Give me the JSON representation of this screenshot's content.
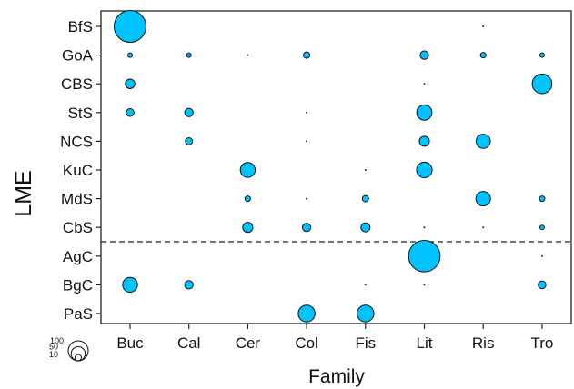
{
  "chart_data": {
    "type": "bubble",
    "xlabel": "Family",
    "ylabel": "LME",
    "categories_x": [
      "Buc",
      "Cal",
      "Cer",
      "Col",
      "Fis",
      "Lit",
      "Ris",
      "Tro"
    ],
    "categories_y": [
      "BfS",
      "GoA",
      "CBS",
      "StS",
      "NCS",
      "KuC",
      "MdS",
      "CbS",
      "AgC",
      "BgC",
      "PaS"
    ],
    "divider_between": [
      "CbS",
      "AgC"
    ],
    "bubble_color": "#00c2ff",
    "size_legend": {
      "values": [
        100,
        50,
        10
      ],
      "labels": [
        "100",
        "50",
        "10"
      ]
    },
    "points": [
      {
        "x": "Buc",
        "y": "BfS",
        "value": 100
      },
      {
        "x": "Ris",
        "y": "BfS",
        "value": 0.5
      },
      {
        "x": "Buc",
        "y": "GoA",
        "value": 2
      },
      {
        "x": "Cal",
        "y": "GoA",
        "value": 2
      },
      {
        "x": "Cer",
        "y": "GoA",
        "value": 0.5
      },
      {
        "x": "Col",
        "y": "GoA",
        "value": 4
      },
      {
        "x": "Lit",
        "y": "GoA",
        "value": 7
      },
      {
        "x": "Ris",
        "y": "GoA",
        "value": 3
      },
      {
        "x": "Tro",
        "y": "GoA",
        "value": 2
      },
      {
        "x": "Buc",
        "y": "CBS",
        "value": 9
      },
      {
        "x": "Lit",
        "y": "CBS",
        "value": 0.5
      },
      {
        "x": "Tro",
        "y": "CBS",
        "value": 38
      },
      {
        "x": "Buc",
        "y": "StS",
        "value": 6
      },
      {
        "x": "Cal",
        "y": "StS",
        "value": 7
      },
      {
        "x": "Col",
        "y": "StS",
        "value": 0.5
      },
      {
        "x": "Lit",
        "y": "StS",
        "value": 23
      },
      {
        "x": "Cal",
        "y": "NCS",
        "value": 5
      },
      {
        "x": "Col",
        "y": "NCS",
        "value": 0.5
      },
      {
        "x": "Lit",
        "y": "NCS",
        "value": 10
      },
      {
        "x": "Ris",
        "y": "NCS",
        "value": 20
      },
      {
        "x": "Cer",
        "y": "KuC",
        "value": 22
      },
      {
        "x": "Fis",
        "y": "KuC",
        "value": 0.5
      },
      {
        "x": "Lit",
        "y": "KuC",
        "value": 24
      },
      {
        "x": "Cer",
        "y": "MdS",
        "value": 3
      },
      {
        "x": "Col",
        "y": "MdS",
        "value": 0.5
      },
      {
        "x": "Fis",
        "y": "MdS",
        "value": 4
      },
      {
        "x": "Ris",
        "y": "MdS",
        "value": 21
      },
      {
        "x": "Tro",
        "y": "MdS",
        "value": 3
      },
      {
        "x": "Cer",
        "y": "CbS",
        "value": 10
      },
      {
        "x": "Col",
        "y": "CbS",
        "value": 7
      },
      {
        "x": "Fis",
        "y": "CbS",
        "value": 8
      },
      {
        "x": "Lit",
        "y": "CbS",
        "value": 0.5
      },
      {
        "x": "Ris",
        "y": "CbS",
        "value": 0.5
      },
      {
        "x": "Tro",
        "y": "CbS",
        "value": 2
      },
      {
        "x": "Lit",
        "y": "AgC",
        "value": 98
      },
      {
        "x": "Tro",
        "y": "AgC",
        "value": 0.5
      },
      {
        "x": "Buc",
        "y": "BgC",
        "value": 22
      },
      {
        "x": "Cal",
        "y": "BgC",
        "value": 7
      },
      {
        "x": "Fis",
        "y": "BgC",
        "value": 0.5
      },
      {
        "x": "Lit",
        "y": "BgC",
        "value": 0.5
      },
      {
        "x": "Tro",
        "y": "BgC",
        "value": 6
      },
      {
        "x": "Col",
        "y": "PaS",
        "value": 28
      },
      {
        "x": "Fis",
        "y": "PaS",
        "value": 28
      }
    ]
  }
}
